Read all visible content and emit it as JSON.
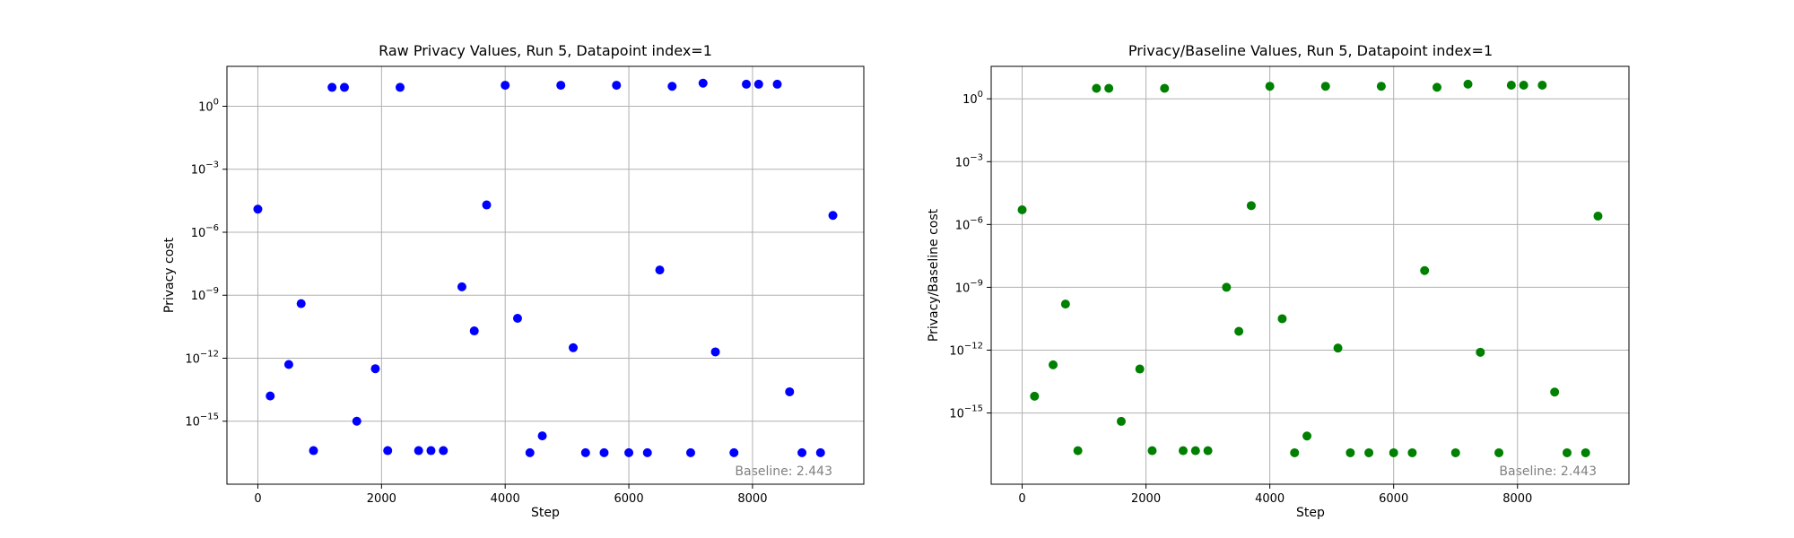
{
  "colors": {
    "left_points": "#0000ff",
    "right_points": "#008000",
    "baseline_text": "#808080"
  },
  "chart_data": [
    {
      "type": "scatter",
      "title": "Raw Privacy Values, Run 5, Datapoint index=1",
      "xlabel": "Step",
      "ylabel": "Privacy cost",
      "y_scale": "log",
      "xlim": [
        -500,
        9800
      ],
      "ylim_exp": [
        -18,
        1.9
      ],
      "xticks": [
        0,
        2000,
        4000,
        6000,
        8000
      ],
      "yticks_exp": [
        0,
        -3,
        -6,
        -9,
        -12,
        -15
      ],
      "grid": true,
      "annotation": "Baseline: 2.443",
      "color": "#0000ff",
      "x": [
        0,
        200,
        500,
        700,
        900,
        1200,
        1400,
        1600,
        1900,
        2100,
        2300,
        2600,
        2800,
        3000,
        3300,
        3500,
        3700,
        4000,
        4200,
        4400,
        4600,
        4900,
        5100,
        5300,
        5600,
        5800,
        6000,
        6300,
        6500,
        6700,
        7000,
        7200,
        7400,
        7700,
        7900,
        8100,
        8400,
        8600,
        8800,
        9100,
        9300
      ],
      "y_exp": [
        -4.9,
        -13.8,
        -12.3,
        -9.4,
        -16.4,
        0.9,
        0.9,
        -15.0,
        -12.5,
        -16.4,
        0.9,
        -16.4,
        -16.4,
        -16.4,
        -8.6,
        -10.7,
        -4.7,
        1.0,
        -10.1,
        -16.5,
        -15.7,
        1.0,
        -11.5,
        -16.5,
        -16.5,
        1.0,
        -16.5,
        -16.5,
        -7.8,
        0.95,
        -16.5,
        1.1,
        -11.7,
        -16.5,
        1.05,
        1.05,
        1.05,
        -13.6,
        -16.5,
        -16.5,
        -5.2
      ]
    },
    {
      "type": "scatter",
      "title": "Privacy/Baseline Values, Run 5, Datapoint index=1",
      "xlabel": "Step",
      "ylabel": "Privacy/Baseline cost",
      "y_scale": "log",
      "xlim": [
        -500,
        9800
      ],
      "ylim_exp": [
        -18.4,
        1.55
      ],
      "xticks": [
        0,
        2000,
        4000,
        6000,
        8000
      ],
      "yticks_exp": [
        0,
        -3,
        -6,
        -9,
        -12,
        -15
      ],
      "grid": true,
      "annotation": "Baseline: 2.443",
      "color": "#008000",
      "x": [
        0,
        200,
        500,
        700,
        900,
        1200,
        1400,
        1600,
        1900,
        2100,
        2300,
        2600,
        2800,
        3000,
        3300,
        3500,
        3700,
        4000,
        4200,
        4400,
        4600,
        4900,
        5100,
        5300,
        5600,
        5800,
        6000,
        6300,
        6500,
        6700,
        7000,
        7200,
        7400,
        7700,
        7900,
        8100,
        8400,
        8600,
        8800,
        9100,
        9300
      ],
      "y_exp": [
        -5.3,
        -14.2,
        -12.7,
        -9.8,
        -16.8,
        0.5,
        0.5,
        -15.4,
        -12.9,
        -16.8,
        0.5,
        -16.8,
        -16.8,
        -16.8,
        -9.0,
        -11.1,
        -5.1,
        0.6,
        -10.5,
        -16.9,
        -16.1,
        0.6,
        -11.9,
        -16.9,
        -16.9,
        0.6,
        -16.9,
        -16.9,
        -8.2,
        0.55,
        -16.9,
        0.7,
        -12.1,
        -16.9,
        0.65,
        0.65,
        0.65,
        -14.0,
        -16.9,
        -16.9,
        -5.6
      ]
    }
  ]
}
